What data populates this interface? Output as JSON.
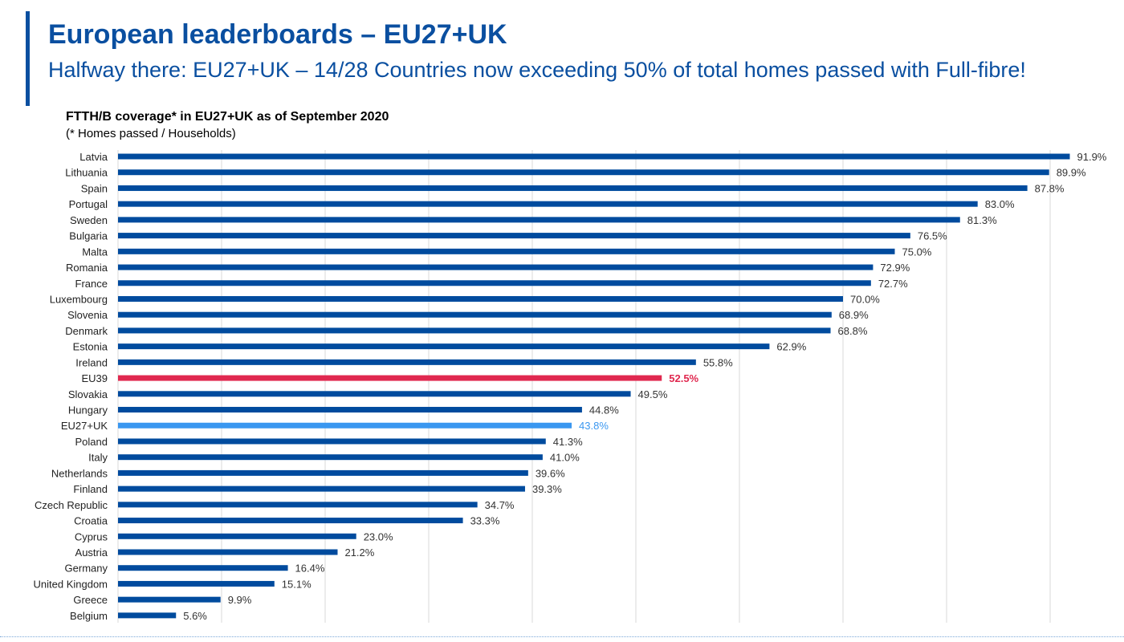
{
  "header": {
    "title": "European leaderboards – EU27+UK",
    "subtitle": "Halfway there: EU27+UK – 14/28 Countries now exceeding 50% of total homes passed with Full-fibre!"
  },
  "colors": {
    "accent": "#0a4fa0",
    "bar": "#004b9e",
    "highlight_eu39": "#e0284f",
    "highlight_eu27uk": "#3a97f0",
    "gridline": "#d9d9d9"
  },
  "chart_data": {
    "type": "bar",
    "orientation": "horizontal",
    "title": "FTTH/B coverage* in EU27+UK as of September 2020",
    "note": "(* Homes passed / Households)",
    "xlim": [
      0,
      90
    ],
    "grid": true,
    "categories": [
      "Latvia",
      "Lithuania",
      "Spain",
      "Portugal",
      "Sweden",
      "Bulgaria",
      "Malta",
      "Romania",
      "France",
      "Luxembourg",
      "Slovenia",
      "Denmark",
      "Estonia",
      "Ireland",
      "EU39",
      "Slovakia",
      "Hungary",
      "EU27+UK",
      "Poland",
      "Italy",
      "Netherlands",
      "Finland",
      "Czech Republic",
      "Croatia",
      "Cyprus",
      "Austria",
      "Germany",
      "United Kingdom",
      "Greece",
      "Belgium"
    ],
    "values": [
      91.9,
      89.9,
      87.8,
      83.0,
      81.3,
      76.5,
      75.0,
      72.9,
      72.7,
      70.0,
      68.9,
      68.8,
      62.9,
      55.8,
      52.5,
      49.5,
      44.8,
      43.8,
      41.3,
      41.0,
      39.6,
      39.3,
      34.7,
      33.3,
      23.0,
      21.2,
      16.4,
      15.1,
      9.9,
      5.6
    ],
    "labels": [
      "91.9%",
      "89.9%",
      "87.8%",
      "83.0%",
      "81.3%",
      "76.5%",
      "75.0%",
      "72.9%",
      "72.7%",
      "70.0%",
      "68.9%",
      "68.8%",
      "62.9%",
      "55.8%",
      "52.5%",
      "49.5%",
      "44.8%",
      "43.8%",
      "41.3%",
      "41.0%",
      "39.6%",
      "39.3%",
      "34.7%",
      "33.3%",
      "23.0%",
      "21.2%",
      "16.4%",
      "15.1%",
      "9.9%",
      "5.6%"
    ],
    "highlights": {
      "EU39": "eu39",
      "EU27+UK": "eu27uk"
    }
  }
}
